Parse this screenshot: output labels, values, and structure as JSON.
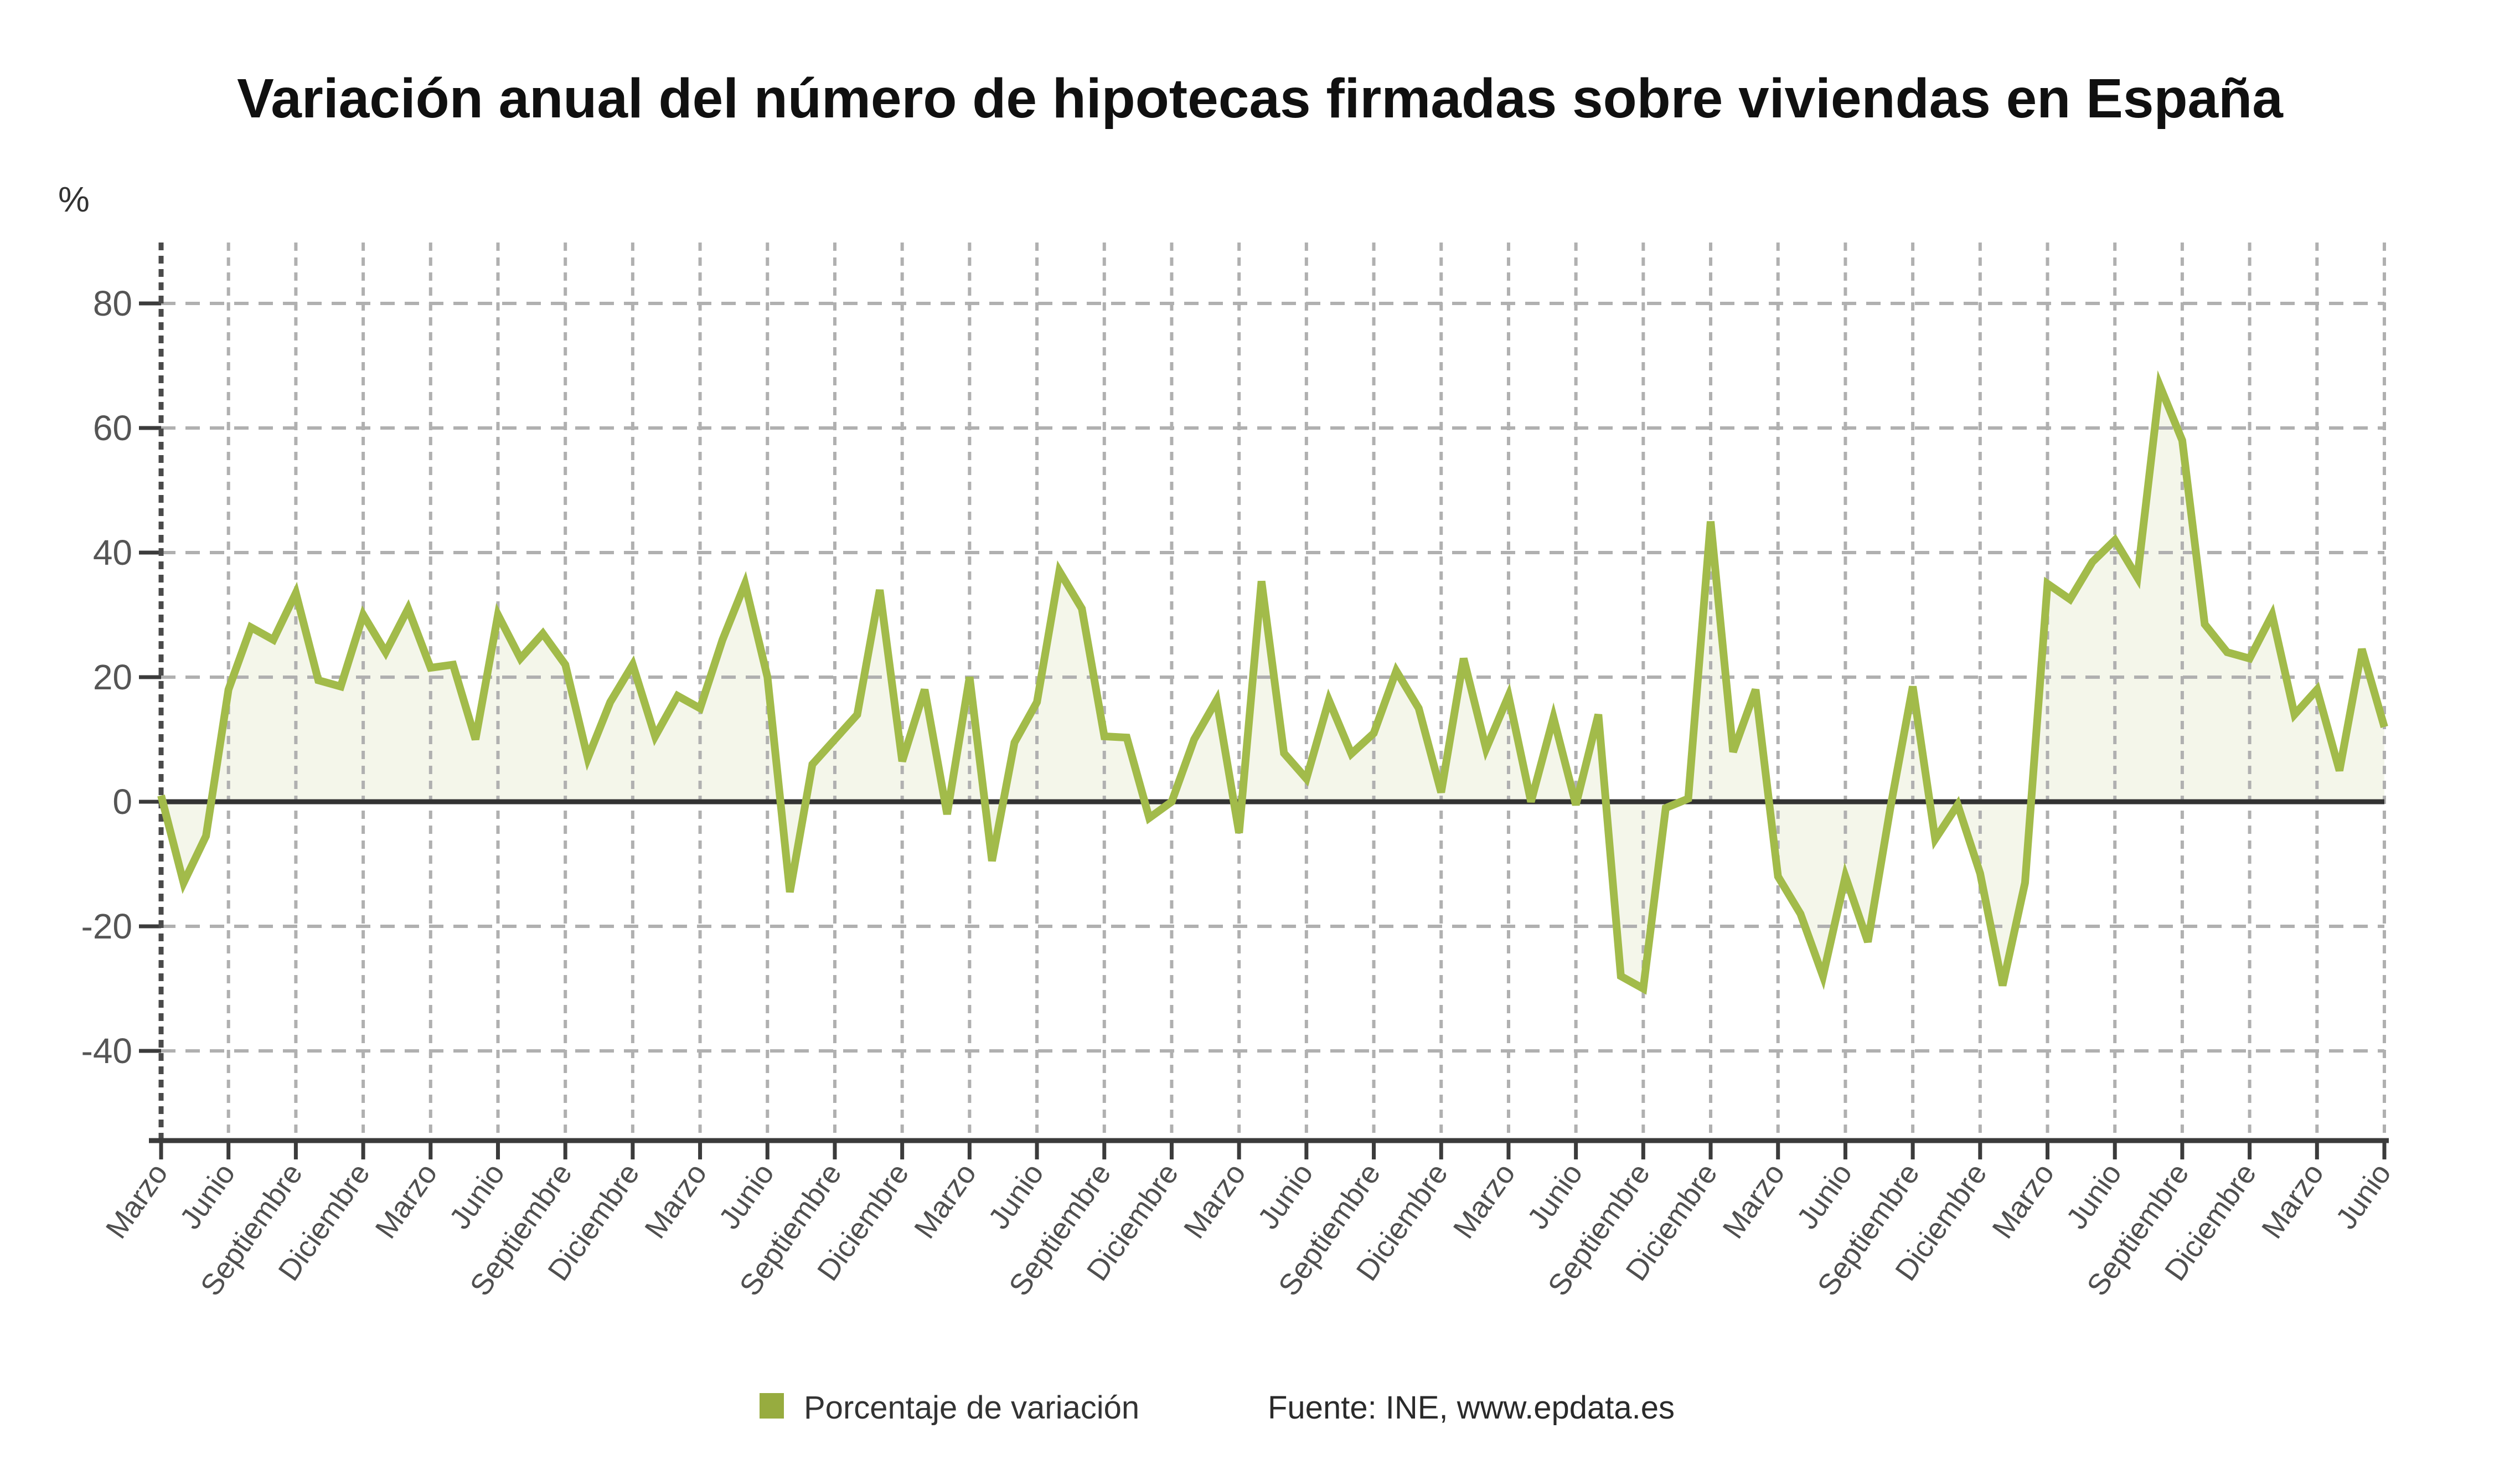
{
  "title": "Variación anual del número de hipotecas firmadas sobre viviendas en España",
  "y_axis_unit": "%",
  "legend": {
    "series_label": "Porcentaje de variación",
    "source_label": "Fuente: INE, www.epdata.es"
  },
  "colors": {
    "line": "#a2bb4a",
    "area_fill": "#f4f6ea",
    "legend_swatch": "#97ac3f",
    "grid": "#b0b0b0",
    "axis": "#3b3b3b",
    "y_tick_text": "#555555",
    "x_tick_text": "#4f4f4f",
    "title_text": "#101010",
    "legend_text": "#333333"
  },
  "chart_data": {
    "type": "line",
    "title": "Variación anual del número de hipotecas firmadas sobre viviendas en España",
    "ylabel": "%",
    "xlabel": "",
    "grid": true,
    "legend_position": "bottom",
    "baseline": 0,
    "ylim": [
      -54,
      91
    ],
    "y_ticks": [
      80,
      60,
      40,
      20,
      0,
      -20,
      -40
    ],
    "x_tick_every_n_points": 3,
    "x_tick_labels": [
      "Marzo",
      "Junio",
      "Septiembre",
      "Diciembre",
      "Marzo",
      "Junio",
      "Septiembre",
      "Diciembre",
      "Marzo",
      "Junio",
      "Septiembre",
      "Diciembre",
      "Marzo",
      "Junio",
      "Septiembre",
      "Diciembre",
      "Marzo",
      "Junio",
      "Septiembre",
      "Diciembre",
      "Marzo",
      "Junio",
      "Septiembre",
      "Diciembre",
      "Marzo",
      "Junio",
      "Septiembre",
      "Diciembre",
      "Marzo",
      "Junio",
      "Septiembre",
      "Diciembre",
      "Marzo",
      "Junio"
    ],
    "series": [
      {
        "name": "Porcentaje de variación",
        "values": [
          1,
          -13,
          -5.5,
          18,
          28,
          26,
          33.5,
          19.5,
          18.5,
          30,
          24,
          31,
          21.5,
          22,
          10,
          30,
          23,
          27,
          22,
          7,
          16,
          22,
          10.5,
          17,
          15,
          26,
          35,
          20,
          -14.5,
          6,
          10,
          14,
          34,
          6.5,
          18,
          -2,
          20,
          -9.5,
          9.5,
          16,
          37,
          31,
          10.5,
          10.3,
          -2.6,
          0,
          10,
          16.3,
          -5,
          35.4,
          7.8,
          3.7,
          16.3,
          7.7,
          11,
          21,
          15,
          1.5,
          23,
          8.5,
          17,
          0,
          13.5,
          -0.5,
          14,
          -28,
          -30,
          -1,
          0.5,
          45,
          8,
          18,
          -12,
          -18,
          -28,
          -12,
          -22.5,
          -1,
          18.5,
          -6,
          -0.5,
          -11.5,
          -29.5,
          -13,
          35,
          32.5,
          38.5,
          42,
          36,
          66.8,
          58,
          28.5,
          24,
          23,
          30,
          14,
          18,
          5,
          24.5,
          12
        ]
      }
    ]
  }
}
